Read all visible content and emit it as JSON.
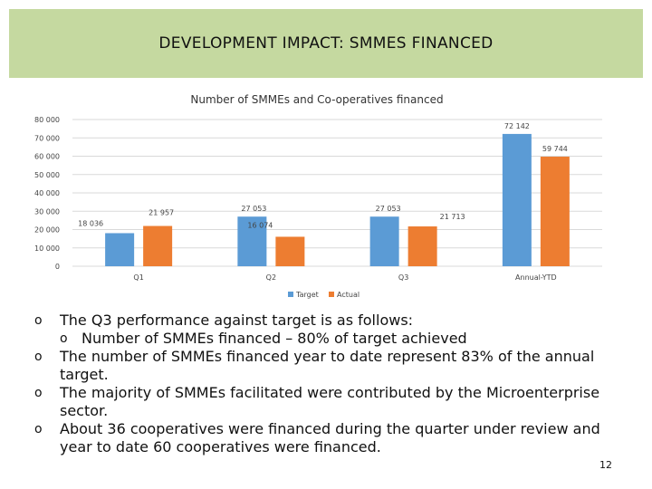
{
  "header": {
    "title": "DEVELOPMENT IMPACT:  SMMES FINANCED"
  },
  "chart_data": {
    "type": "bar",
    "title": "Number of SMMEs and Co-operatives financed",
    "categories": [
      "Q1",
      "Q2",
      "Q3",
      "Annual-YTD"
    ],
    "series": [
      {
        "name": "Target",
        "values": [
          18036,
          27053,
          27053,
          72142
        ],
        "labels": [
          "18 036",
          "27 053",
          "27 053",
          "72 142"
        ],
        "color": "#5b9bd5"
      },
      {
        "name": "Actual",
        "values": [
          21957,
          16074,
          21713,
          59744
        ],
        "labels": [
          "21 957",
          "16 074",
          "21 713",
          "59 744"
        ],
        "color": "#ed7d31"
      }
    ],
    "ylim": [
      0,
      80000
    ],
    "yticks": [
      0,
      10000,
      20000,
      30000,
      40000,
      50000,
      60000,
      70000,
      80000
    ],
    "ytick_labels": [
      "0",
      "10 000",
      "20 000",
      "30 000",
      "40 000",
      "50 000",
      "60 000",
      "70 000",
      "80 000"
    ],
    "grid": true,
    "legend": "bottom"
  },
  "bullets": [
    {
      "marker": "o",
      "text": "The Q3 performance against target is as follows:",
      "sub": [
        {
          "marker": "o",
          "text": "Number of SMMEs financed – 80% of target achieved"
        }
      ]
    },
    {
      "marker": "o",
      "text": "The number of SMMEs financed year to date represent 83% of the annual target."
    },
    {
      "marker": "o",
      "text": "The majority of SMMEs facilitated were contributed by the Microenterprise sector."
    },
    {
      "marker": "o",
      "text": "About 36 cooperatives were financed during the quarter under review and year to date 60 cooperatives were financed."
    }
  ],
  "page_number": "12"
}
